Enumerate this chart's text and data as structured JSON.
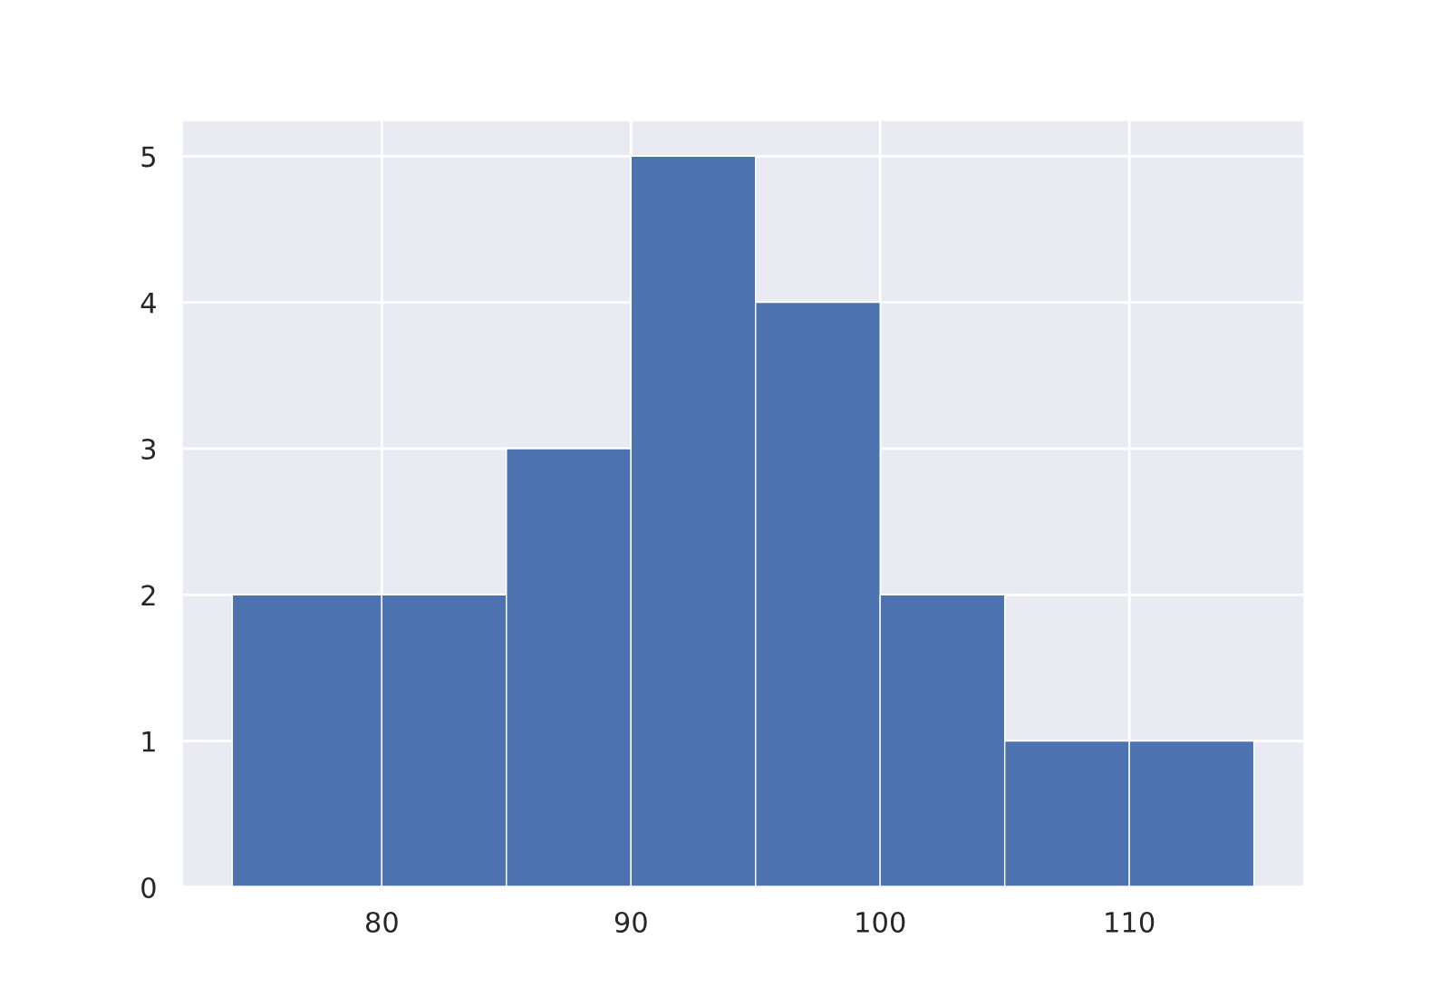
{
  "chart_data": {
    "type": "histogram",
    "bins": [
      74,
      80,
      85,
      90,
      95,
      100,
      105,
      110,
      115
    ],
    "values": [
      2,
      2,
      3,
      5,
      4,
      2,
      1,
      1
    ],
    "color": "#4c72b0",
    "xlim": [
      71.95,
      117.05
    ],
    "xticks": [
      80,
      90,
      100,
      110
    ],
    "ylim": [
      0,
      5.25
    ],
    "yticks": [
      0,
      1,
      2,
      3,
      4,
      5
    ],
    "grid": true
  }
}
